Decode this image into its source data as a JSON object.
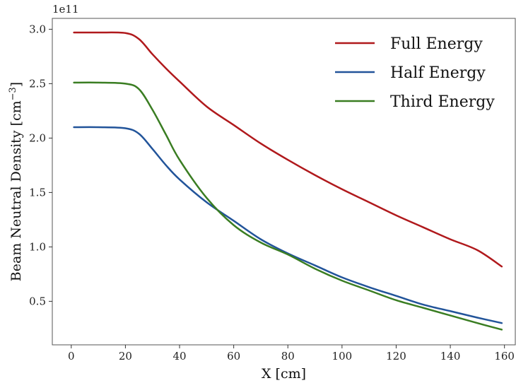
{
  "chart_data": {
    "type": "line",
    "xlabel": "X [cm]",
    "ylabel": "Beam Neutral Density [cm",
    "ylabel_exponent": "−3",
    "ylabel_close": "]",
    "y_offset_label": "1e11",
    "xlim": [
      -7,
      164
    ],
    "ylim": [
      0.1,
      3.1
    ],
    "x_ticks": [
      0,
      20,
      40,
      60,
      80,
      100,
      120,
      140,
      160
    ],
    "y_ticks": [
      0.5,
      1.0,
      1.5,
      2.0,
      2.5,
      3.0
    ],
    "y_tick_labels": [
      "0.5",
      "1.0",
      "1.5",
      "2.0",
      "2.5",
      "3.0"
    ],
    "grid": false,
    "legend_position": "top-right",
    "x": [
      1,
      10,
      20,
      25,
      30,
      35,
      40,
      50,
      60,
      70,
      80,
      90,
      100,
      110,
      120,
      130,
      140,
      150,
      159
    ],
    "series": [
      {
        "name": "Full Energy",
        "color": "#b0191c",
        "values": [
          2.97,
          2.97,
          2.965,
          2.91,
          2.77,
          2.64,
          2.52,
          2.29,
          2.12,
          1.95,
          1.8,
          1.66,
          1.53,
          1.41,
          1.29,
          1.18,
          1.07,
          0.97,
          0.82
        ]
      },
      {
        "name": "Half Energy",
        "color": "#22549a",
        "values": [
          2.1,
          2.1,
          2.09,
          2.04,
          1.9,
          1.75,
          1.62,
          1.41,
          1.24,
          1.07,
          0.94,
          0.83,
          0.72,
          0.63,
          0.55,
          0.47,
          0.41,
          0.35,
          0.3
        ]
      },
      {
        "name": "Third Energy",
        "color": "#3a7d22",
        "values": [
          2.51,
          2.51,
          2.5,
          2.45,
          2.26,
          2.03,
          1.8,
          1.45,
          1.2,
          1.04,
          0.93,
          0.8,
          0.69,
          0.6,
          0.51,
          0.44,
          0.37,
          0.3,
          0.24
        ]
      }
    ]
  }
}
